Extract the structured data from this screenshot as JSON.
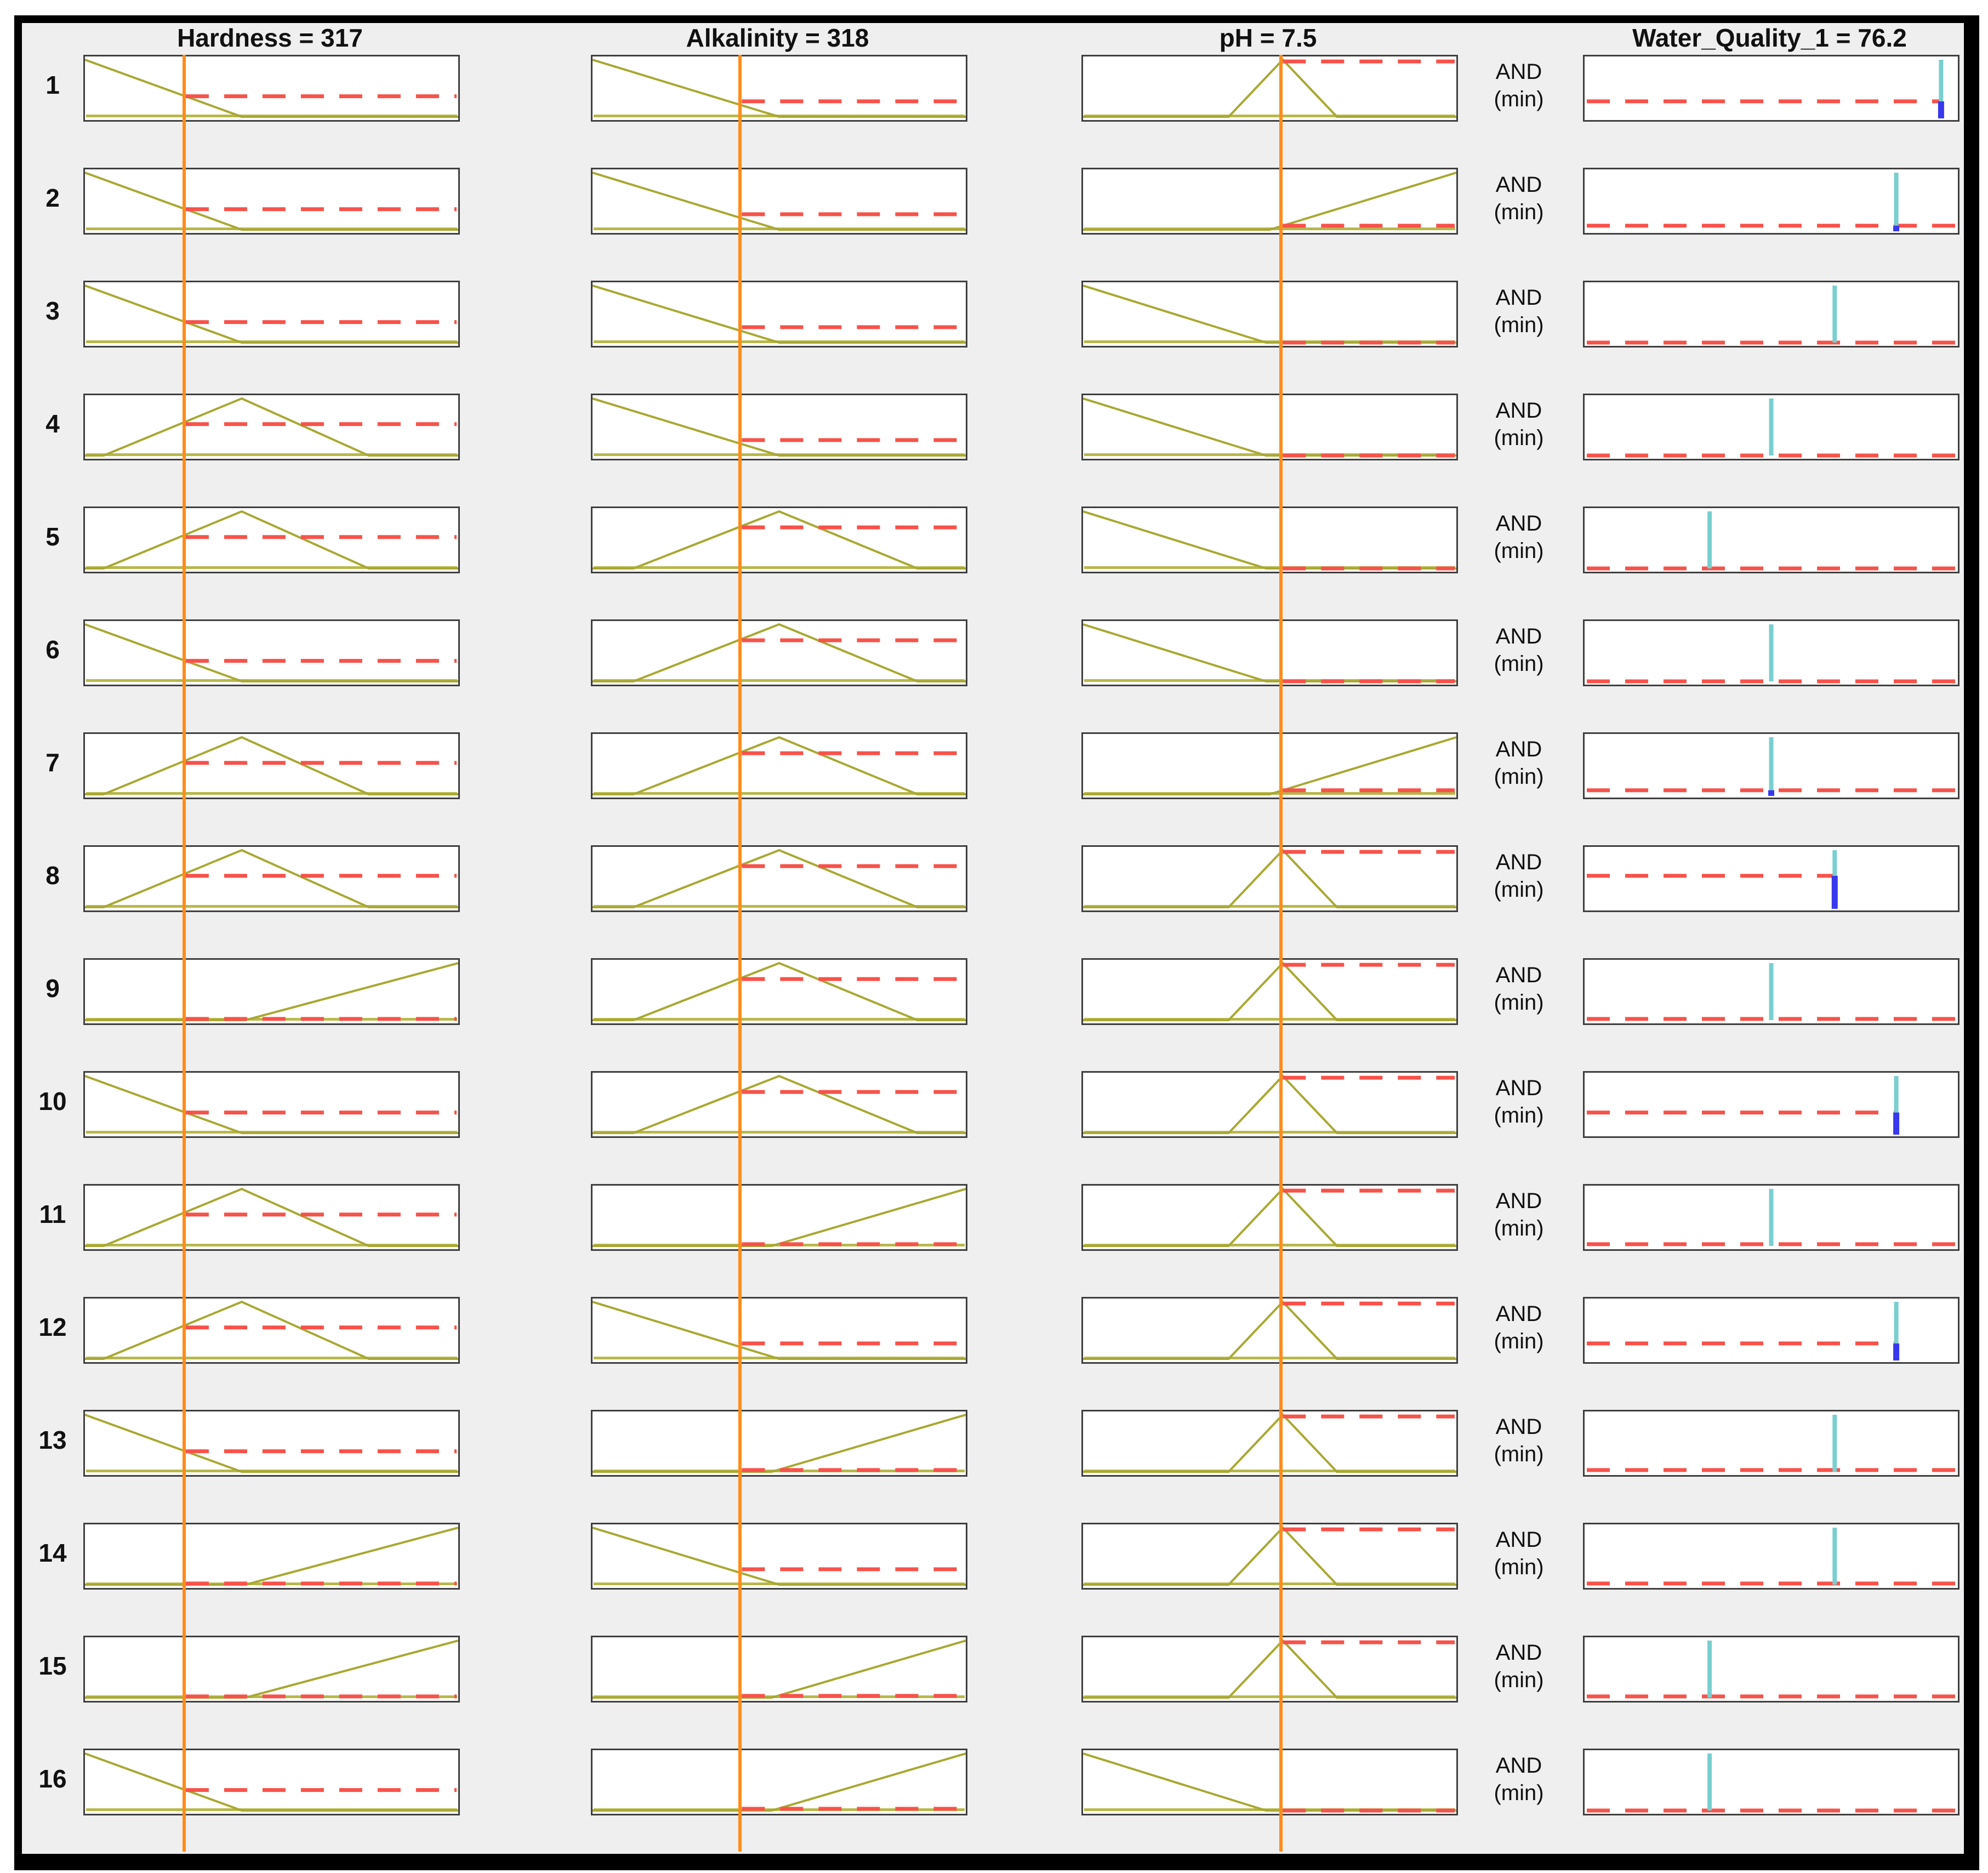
{
  "figure": {
    "and_label": "AND",
    "min_label": "(min)",
    "row_numbers": [
      "1",
      "2",
      "3",
      "4",
      "5",
      "6",
      "7",
      "8",
      "9",
      "10",
      "11",
      "12",
      "13",
      "14",
      "15",
      "16"
    ]
  },
  "colors": {
    "panel_bg": "#efefef",
    "plot_bg": "#ffffff",
    "plot_border": "#3f3f3f",
    "frame": "#000000",
    "mf_line": "#a8a832",
    "baseline": "#b8b84a",
    "activation_dash": "#f8524a",
    "input_value_line": "#ff8c1a",
    "output_spike": "#79cfcf",
    "clipped_bar": "#3838ef",
    "text": "#111111"
  },
  "chart_data": {
    "type": "fuzzy-rule-inference",
    "title": "Fuzzy rule viewer: 16 rules, 3 inputs, 1 output, AND (min) connective",
    "inputs": [
      {
        "name": "Hardness",
        "display": "Hardness = 317",
        "value": 317,
        "value_line_frac": 0.27,
        "mfs": {
          "low": [
            [
              0,
              1
            ],
            [
              0.42,
              0
            ],
            [
              1,
              0
            ]
          ],
          "medium": [
            [
              0,
              0
            ],
            [
              0.05,
              0
            ],
            [
              0.42,
              1
            ],
            [
              0.76,
              0
            ],
            [
              1,
              0
            ]
          ],
          "high": [
            [
              0,
              0
            ],
            [
              0.43,
              0
            ],
            [
              1,
              1
            ]
          ]
        }
      },
      {
        "name": "Alkalinity",
        "display": "Alkalinity = 318",
        "value": 318,
        "value_line_frac": 0.4,
        "mfs": {
          "low": [
            [
              0,
              1
            ],
            [
              0.5,
              0
            ],
            [
              1,
              0
            ]
          ],
          "medium": [
            [
              0,
              0
            ],
            [
              0.11,
              0
            ],
            [
              0.5,
              1
            ],
            [
              0.87,
              0
            ],
            [
              1,
              0
            ]
          ],
          "high": [
            [
              0,
              0
            ],
            [
              0.48,
              0
            ],
            [
              1,
              1
            ]
          ]
        }
      },
      {
        "name": "pH",
        "display": "pH = 7.5",
        "value": 7.5,
        "value_line_frac": 0.535,
        "mfs": {
          "low": [
            [
              0,
              1
            ],
            [
              0.49,
              0
            ],
            [
              1,
              0
            ]
          ],
          "medium": [
            [
              0,
              0
            ],
            [
              0.39,
              0
            ],
            [
              0.535,
              1
            ],
            [
              0.68,
              0
            ],
            [
              1,
              0
            ]
          ],
          "high": [
            [
              0,
              0
            ],
            [
              0.5,
              0
            ],
            [
              1,
              1
            ]
          ]
        }
      }
    ],
    "output": {
      "name": "Water_Quality_1",
      "display": "Water_Quality_1 = 76.2",
      "value": 76.2
    },
    "connective": {
      "and": "AND",
      "min": "(min)"
    },
    "rules": [
      {
        "n": 1,
        "mf": [
          "low",
          "low",
          "medium"
        ],
        "activations": [
          0.36,
          0.27,
          0.97
        ],
        "strength": 0.27,
        "out_pos": 0.955
      },
      {
        "n": 2,
        "mf": [
          "low",
          "low",
          "high"
        ],
        "activations": [
          0.36,
          0.27,
          0.07
        ],
        "strength": 0.07,
        "out_pos": 0.835
      },
      {
        "n": 3,
        "mf": [
          "low",
          "low",
          "low"
        ],
        "activations": [
          0.36,
          0.27,
          0.0
        ],
        "strength": 0.0,
        "out_pos": 0.67
      },
      {
        "n": 4,
        "mf": [
          "medium",
          "low",
          "low"
        ],
        "activations": [
          0.55,
          0.27,
          0.0
        ],
        "strength": 0.0,
        "out_pos": 0.5
      },
      {
        "n": 5,
        "mf": [
          "medium",
          "medium",
          "low"
        ],
        "activations": [
          0.55,
          0.72,
          0.0
        ],
        "strength": 0.0,
        "out_pos": 0.335
      },
      {
        "n": 6,
        "mf": [
          "low",
          "medium",
          "low"
        ],
        "activations": [
          0.36,
          0.72,
          0.0
        ],
        "strength": 0.0,
        "out_pos": 0.5
      },
      {
        "n": 7,
        "mf": [
          "medium",
          "medium",
          "high"
        ],
        "activations": [
          0.55,
          0.72,
          0.07
        ],
        "strength": 0.07,
        "out_pos": 0.5
      },
      {
        "n": 8,
        "mf": [
          "medium",
          "medium",
          "medium"
        ],
        "activations": [
          0.55,
          0.72,
          0.97
        ],
        "strength": 0.55,
        "out_pos": 0.67
      },
      {
        "n": 9,
        "mf": [
          "high",
          "medium",
          "medium"
        ],
        "activations": [
          0.02,
          0.72,
          0.97
        ],
        "strength": 0.02,
        "out_pos": 0.5
      },
      {
        "n": 10,
        "mf": [
          "low",
          "medium",
          "medium"
        ],
        "activations": [
          0.36,
          0.72,
          0.97
        ],
        "strength": 0.36,
        "out_pos": 0.835
      },
      {
        "n": 11,
        "mf": [
          "medium",
          "high",
          "medium"
        ],
        "activations": [
          0.55,
          0.03,
          0.97
        ],
        "strength": 0.03,
        "out_pos": 0.5
      },
      {
        "n": 12,
        "mf": [
          "medium",
          "low",
          "medium"
        ],
        "activations": [
          0.55,
          0.27,
          0.97
        ],
        "strength": 0.27,
        "out_pos": 0.835
      },
      {
        "n": 13,
        "mf": [
          "low",
          "high",
          "medium"
        ],
        "activations": [
          0.36,
          0.03,
          0.97
        ],
        "strength": 0.03,
        "out_pos": 0.67
      },
      {
        "n": 14,
        "mf": [
          "high",
          "low",
          "medium"
        ],
        "activations": [
          0.02,
          0.27,
          0.97
        ],
        "strength": 0.02,
        "out_pos": 0.67
      },
      {
        "n": 15,
        "mf": [
          "high",
          "high",
          "medium"
        ],
        "activations": [
          0.02,
          0.03,
          0.97
        ],
        "strength": 0.02,
        "out_pos": 0.335
      },
      {
        "n": 16,
        "mf": [
          "low",
          "high",
          "low"
        ],
        "activations": [
          0.36,
          0.03,
          0.0
        ],
        "strength": 0.0,
        "out_pos": 0.335
      }
    ]
  }
}
